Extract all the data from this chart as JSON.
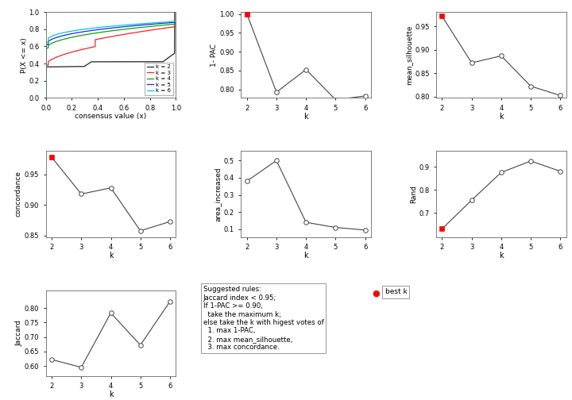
{
  "k_values": [
    2,
    3,
    4,
    5,
    6
  ],
  "pac_1minus": [
    1.0,
    0.793,
    0.853,
    0.773,
    0.783
  ],
  "mean_silhouette": [
    0.972,
    0.872,
    0.887,
    0.822,
    0.802
  ],
  "concordance": [
    0.978,
    0.918,
    0.928,
    0.858,
    0.873
  ],
  "area_increased": [
    0.38,
    0.5,
    0.14,
    0.11,
    0.095
  ],
  "rand": [
    0.63,
    0.755,
    0.875,
    0.925,
    0.88
  ],
  "jaccard": [
    0.622,
    0.595,
    0.783,
    0.672,
    0.823
  ],
  "best_k_pac": 0,
  "best_k_silhouette": 0,
  "best_k_concordance": 0,
  "best_k_rand": 0,
  "best_k_jaccard": -1,
  "ecdf_colors": [
    "#222222",
    "#FF2020",
    "#00AA00",
    "#2222FF",
    "#00CCCC"
  ],
  "ecdf_labels": [
    "k = 2",
    "k = 3",
    "k = 4",
    "k = 5",
    "k = 6"
  ],
  "bg_color": "#FFFFFF",
  "line_color": "#444444",
  "open_dot_color": "#FFFFFF",
  "open_dot_edge": "#444444",
  "best_dot_color": "#FF0000",
  "legend_box_text": "Suggested rules:\nJaccard index < 0.95;\nIf 1-PAC >= 0.90,\n  take the maximum k;\nelse take the k with higest votes of\n  1. max 1-PAC,\n  2. max mean_silhouette,\n  3. max concordance.",
  "legend_best_label": "best k"
}
